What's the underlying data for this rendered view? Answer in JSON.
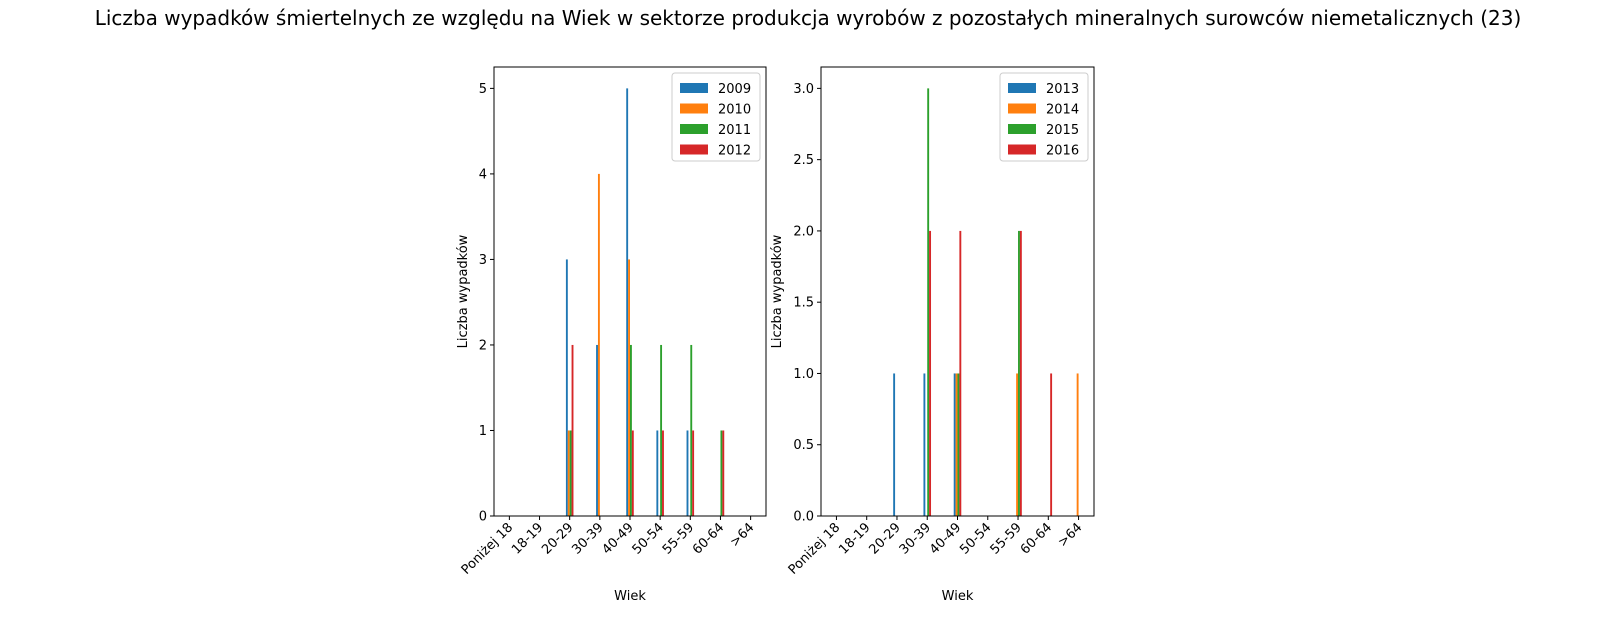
{
  "suptitle": "Liczba wypadków śmiertelnych ze względu na Wiek w sektorze produkcja wyrobów z pozostałych mineralnych surowców niemetalicznych (23)",
  "colors": [
    "#1f77b4",
    "#ff7f0e",
    "#2ca02c",
    "#d62728"
  ],
  "chart_data": [
    {
      "type": "bar",
      "xlabel": "Wiek",
      "ylabel": "Liczba wypadków",
      "categories": [
        "Poniżej 18",
        "18-19",
        "20-29",
        "30-39",
        "40-49",
        "50-54",
        "55-59",
        "60-64",
        ">64"
      ],
      "ylim": [
        0,
        5.25
      ],
      "yticks": [
        "0",
        "1",
        "2",
        "3",
        "4",
        "5"
      ],
      "ytick_values": [
        0,
        1,
        2,
        3,
        4,
        5
      ],
      "legend_position": "top-right",
      "series": [
        {
          "name": "2009",
          "values": [
            0,
            0,
            3,
            2,
            5,
            1,
            1,
            0,
            0
          ]
        },
        {
          "name": "2010",
          "values": [
            0,
            0,
            1,
            4,
            3,
            0,
            0,
            0,
            0
          ]
        },
        {
          "name": "2011",
          "values": [
            0,
            0,
            1,
            0,
            2,
            2,
            2,
            1,
            0
          ]
        },
        {
          "name": "2012",
          "values": [
            0,
            0,
            2,
            0,
            1,
            1,
            1,
            1,
            0
          ]
        }
      ]
    },
    {
      "type": "bar",
      "xlabel": "Wiek",
      "ylabel": "Liczba wypadków",
      "categories": [
        "Poniżej 18",
        "18-19",
        "20-29",
        "30-39",
        "40-49",
        "50-54",
        "55-59",
        "60-64",
        ">64"
      ],
      "ylim": [
        0,
        3.15
      ],
      "yticks": [
        "0.0",
        "0.5",
        "1.0",
        "1.5",
        "2.0",
        "2.5",
        "3.0"
      ],
      "ytick_values": [
        0,
        0.5,
        1,
        1.5,
        2,
        2.5,
        3
      ],
      "legend_position": "top-right",
      "series": [
        {
          "name": "2013",
          "values": [
            0,
            0,
            1,
            1,
            1,
            0,
            0,
            0,
            0
          ]
        },
        {
          "name": "2014",
          "values": [
            0,
            0,
            0,
            0,
            1,
            0,
            1,
            0,
            1
          ]
        },
        {
          "name": "2015",
          "values": [
            0,
            0,
            0,
            3,
            1,
            0,
            2,
            0,
            0
          ]
        },
        {
          "name": "2016",
          "values": [
            0,
            0,
            0,
            2,
            2,
            0,
            2,
            1,
            0
          ]
        }
      ]
    }
  ]
}
